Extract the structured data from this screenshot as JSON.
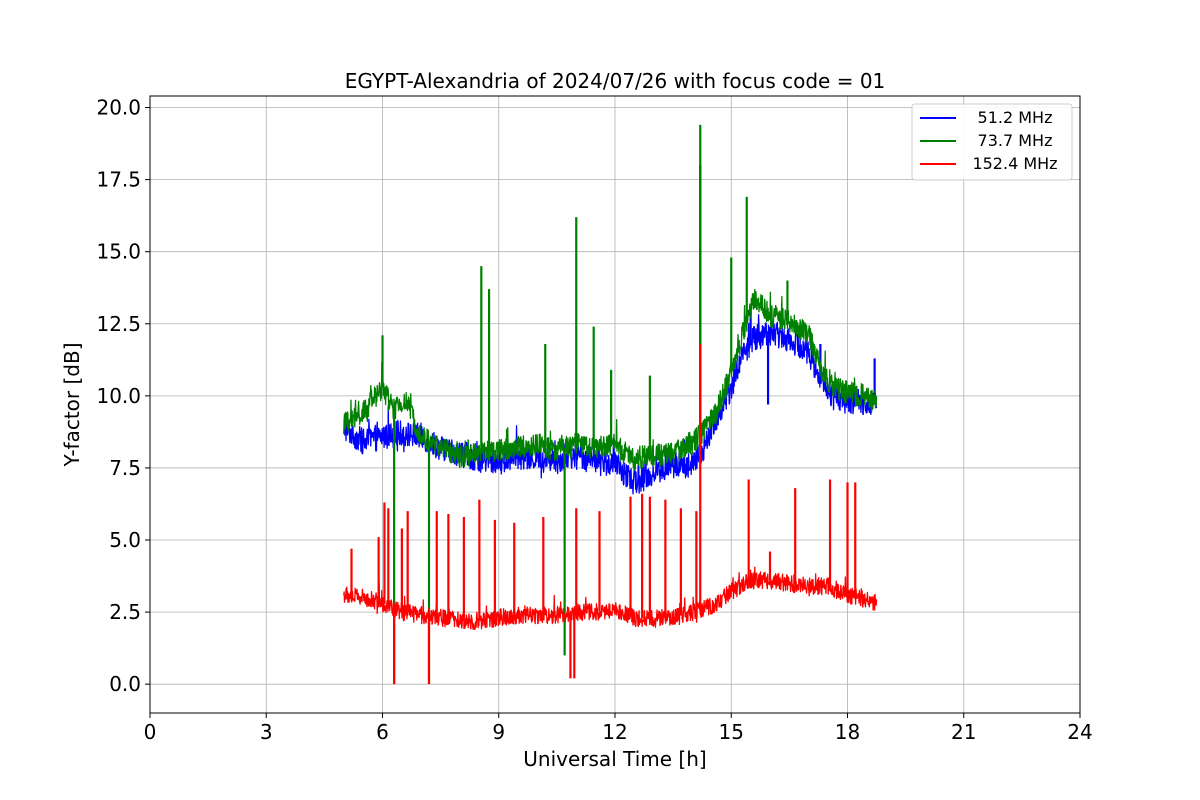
{
  "chart_data": {
    "type": "line",
    "title": "EGYPT-Alexandria of 2024/07/26 with focus code = 01",
    "xlabel": "Universal Time [h]",
    "ylabel": "Y-factor [dB]",
    "xlim": [
      0,
      24
    ],
    "ylim": [
      -1,
      20.4
    ],
    "xticks": [
      0,
      3,
      6,
      9,
      12,
      15,
      18,
      21,
      24
    ],
    "xtick_labels": [
      "0",
      "3",
      "6",
      "9",
      "12",
      "15",
      "18",
      "21",
      "24"
    ],
    "yticks": [
      0,
      2.5,
      5,
      7.5,
      10,
      12.5,
      15,
      17.5,
      20
    ],
    "ytick_labels": [
      "0.0",
      "2.5",
      "5.0",
      "7.5",
      "10.0",
      "12.5",
      "15.0",
      "17.5",
      "20.0"
    ],
    "grid": true,
    "legend_position": "top-right",
    "series": [
      {
        "name": "51.2 MHz",
        "color": "#0000ff",
        "noise": 0.45,
        "x": [
          5.0,
          5.5,
          6.0,
          6.5,
          7.0,
          7.5,
          8.0,
          8.5,
          9.0,
          9.5,
          10.0,
          10.5,
          11.0,
          11.5,
          12.0,
          12.5,
          13.0,
          13.5,
          14.0,
          14.3,
          14.6,
          15.0,
          15.3,
          15.6,
          16.0,
          16.5,
          17.0,
          17.3,
          17.6,
          18.0,
          18.5,
          18.75
        ],
        "y": [
          8.9,
          8.4,
          8.6,
          8.7,
          8.6,
          8.2,
          8.0,
          7.8,
          7.7,
          7.9,
          7.8,
          7.8,
          7.9,
          7.8,
          7.6,
          7.0,
          7.3,
          7.6,
          7.6,
          8.2,
          9.2,
          10.3,
          11.5,
          12.0,
          12.2,
          12.0,
          11.5,
          10.6,
          10.0,
          9.8,
          9.8,
          9.7
        ],
        "spikes": [
          [
            14.2,
            18.0
          ],
          [
            15.5,
            13.0
          ],
          [
            15.95,
            9.7
          ],
          [
            17.3,
            11.8
          ],
          [
            18.7,
            11.3
          ]
        ]
      },
      {
        "name": "73.7 MHz",
        "color": "#008000",
        "noise": 0.4,
        "x": [
          5.0,
          5.5,
          6.0,
          6.3,
          6.6,
          7.0,
          7.5,
          8.0,
          8.5,
          9.0,
          9.5,
          10.0,
          10.5,
          11.0,
          11.5,
          12.0,
          12.5,
          13.0,
          13.5,
          14.0,
          14.3,
          14.6,
          15.0,
          15.3,
          15.6,
          16.0,
          16.5,
          17.0,
          17.3,
          17.6,
          18.0,
          18.5,
          18.75
        ],
        "y": [
          9.0,
          9.4,
          10.3,
          9.5,
          9.8,
          8.6,
          8.2,
          7.9,
          8.0,
          8.1,
          8.2,
          8.3,
          8.1,
          8.3,
          8.2,
          8.3,
          7.8,
          8.0,
          8.0,
          8.4,
          8.8,
          9.4,
          10.8,
          12.2,
          13.4,
          12.8,
          12.6,
          12.1,
          11.0,
          10.3,
          10.1,
          10.0,
          9.9
        ],
        "spikes": [
          [
            6.0,
            12.1
          ],
          [
            6.3,
            0.0
          ],
          [
            7.2,
            0.0
          ],
          [
            8.55,
            14.5
          ],
          [
            8.75,
            13.7
          ],
          [
            10.2,
            11.8
          ],
          [
            10.7,
            1.0
          ],
          [
            11.0,
            16.2
          ],
          [
            11.45,
            12.4
          ],
          [
            11.9,
            10.9
          ],
          [
            12.9,
            10.7
          ],
          [
            14.2,
            19.4
          ],
          [
            15.0,
            14.8
          ],
          [
            15.4,
            16.9
          ],
          [
            16.45,
            14.0
          ]
        ]
      },
      {
        "name": "152.4 MHz",
        "color": "#ff0000",
        "noise": 0.3,
        "x": [
          5.0,
          5.5,
          6.0,
          6.5,
          7.0,
          7.5,
          8.0,
          8.5,
          9.0,
          9.5,
          10.0,
          10.5,
          11.0,
          11.5,
          12.0,
          12.5,
          13.0,
          13.5,
          14.0,
          14.5,
          15.0,
          15.5,
          16.0,
          16.5,
          17.0,
          17.5,
          18.0,
          18.5,
          18.75
        ],
        "y": [
          3.1,
          3.0,
          2.8,
          2.5,
          2.4,
          2.3,
          2.2,
          2.2,
          2.3,
          2.4,
          2.4,
          2.4,
          2.5,
          2.5,
          2.6,
          2.3,
          2.3,
          2.3,
          2.5,
          2.7,
          3.2,
          3.6,
          3.6,
          3.5,
          3.4,
          3.4,
          3.1,
          2.9,
          2.8
        ],
        "spikes": [
          [
            5.2,
            4.7
          ],
          [
            5.9,
            5.1
          ],
          [
            6.05,
            6.3
          ],
          [
            6.15,
            6.1
          ],
          [
            6.3,
            0.0
          ],
          [
            6.5,
            5.4
          ],
          [
            6.65,
            6.0
          ],
          [
            7.2,
            0.0
          ],
          [
            7.4,
            6.0
          ],
          [
            7.7,
            5.9
          ],
          [
            8.1,
            5.8
          ],
          [
            8.5,
            6.4
          ],
          [
            8.9,
            5.7
          ],
          [
            9.4,
            5.6
          ],
          [
            10.15,
            5.8
          ],
          [
            10.85,
            0.2
          ],
          [
            10.95,
            0.2
          ],
          [
            11.0,
            6.1
          ],
          [
            11.6,
            6.0
          ],
          [
            12.4,
            6.5
          ],
          [
            12.7,
            6.6
          ],
          [
            12.9,
            6.5
          ],
          [
            13.3,
            6.4
          ],
          [
            13.7,
            6.1
          ],
          [
            14.1,
            6.0
          ],
          [
            14.2,
            11.8
          ],
          [
            15.45,
            7.1
          ],
          [
            16.0,
            4.6
          ],
          [
            16.65,
            6.8
          ],
          [
            17.55,
            7.1
          ],
          [
            18.0,
            7.0
          ],
          [
            18.2,
            7.0
          ]
        ]
      }
    ]
  }
}
